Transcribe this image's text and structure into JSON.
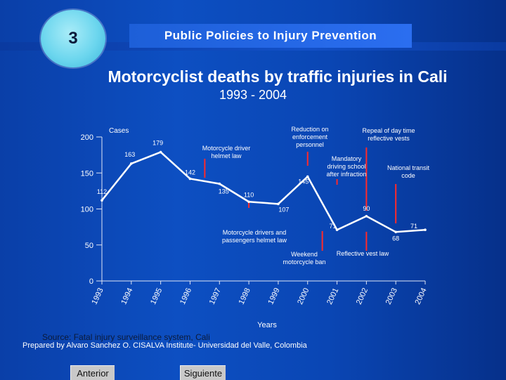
{
  "slide": {
    "number": "3",
    "topic": "Public Policies to Injury Prevention",
    "title": "Motorcyclist deaths by traffic injuries in Cali",
    "subtitle": "1993 - 2004",
    "source": "Source: Fatal injury surveillance system, Cali",
    "prepared": "Prepared by Alvaro Sanchez O. CISALVA Institute- Universidad del Valle, Colombia",
    "nav": {
      "prev": "Anterior",
      "next": "Siguiente"
    }
  },
  "colors": {
    "line": "#ffffff",
    "annotation": "#ff2a2a",
    "text": "#ffffff",
    "axis": "#dfe6f5"
  },
  "chart_data": {
    "type": "line",
    "title": "",
    "xlabel": "Years",
    "ylabel": "Cases",
    "ylim": [
      0,
      200
    ],
    "yticks": [
      0,
      50,
      100,
      150,
      200
    ],
    "grid": false,
    "categories": [
      "1993",
      "1994",
      "1995",
      "1996",
      "1997",
      "1998",
      "1999",
      "2000",
      "2001",
      "2002",
      "2003",
      "2004"
    ],
    "series": [
      {
        "name": "",
        "values": [
          112,
          163,
          179,
          142,
          135,
          110,
          107,
          145,
          71,
          90,
          68,
          71
        ]
      }
    ],
    "value_labels": [
      "112",
      "163",
      "179",
      "142",
      "135",
      "110",
      "107",
      "145",
      "71",
      "90",
      "68",
      "71"
    ],
    "annotations": [
      {
        "text": [
          "Motorcycle driver",
          "helmet law"
        ],
        "year": "1996.5"
      },
      {
        "text": [
          "Motorcycle drivers and",
          "passengers helmet law"
        ],
        "year": "1998"
      },
      {
        "text": [
          "Reduction on",
          "enforcement",
          "personnel"
        ],
        "year": "2000"
      },
      {
        "text": [
          "Mandatory",
          "driving school",
          "after infraction"
        ],
        "year": "2001"
      },
      {
        "text": [
          "Weekend",
          "motorcycle ban"
        ],
        "year": "2000.5"
      },
      {
        "text": [
          "Repeal of day time",
          "reflective vests"
        ],
        "year": "2002"
      },
      {
        "text": [
          "National transit",
          "code"
        ],
        "year": "2003"
      },
      {
        "text": [
          "Reflective vest law"
        ],
        "year": "2002"
      }
    ]
  }
}
